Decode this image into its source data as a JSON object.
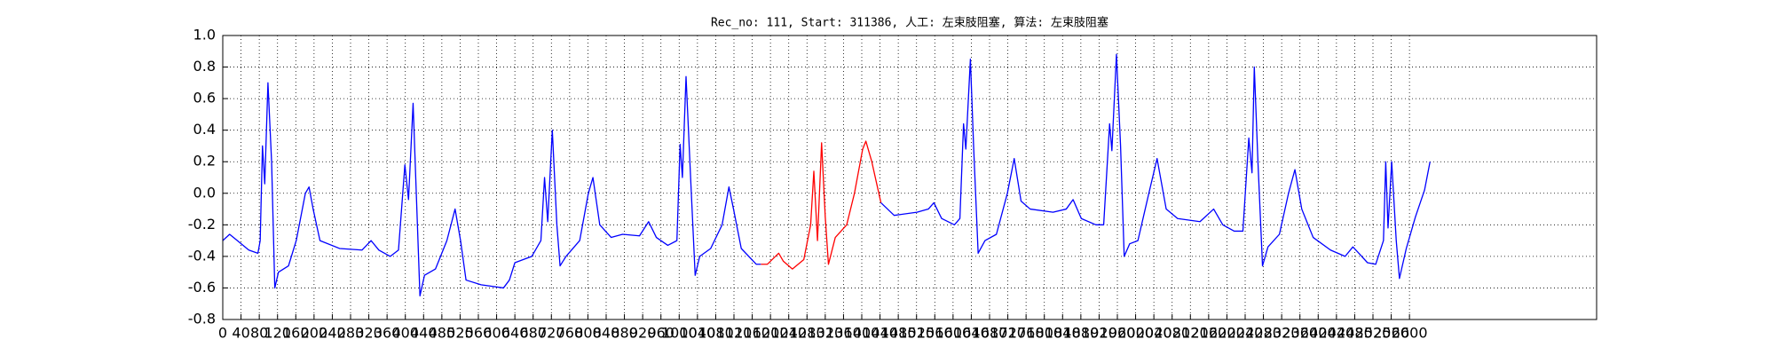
{
  "chart_data": {
    "type": "line",
    "title": "Rec_no: 111, Start: 311386, 人工: 左束肢阻塞, 算法: 左束肢阻塞",
    "xlim": [
      0,
      3010
    ],
    "ylim": [
      -0.8,
      1.0
    ],
    "grid": true,
    "xticks": [
      0,
      40,
      80,
      120,
      160,
      200,
      240,
      280,
      320,
      360,
      400,
      440,
      480,
      520,
      560,
      600,
      640,
      680,
      720,
      760,
      800,
      840,
      880,
      920,
      960,
      1000,
      1040,
      1080,
      1120,
      1160,
      1200,
      1240,
      1280,
      1320,
      1360,
      1400,
      1440,
      1480,
      1520,
      1560,
      1600,
      1640,
      1680,
      1720,
      1760,
      1800,
      1840,
      1880,
      1920,
      1960,
      2000,
      2040,
      2080,
      2120,
      2160,
      2200,
      2240,
      2280,
      2320,
      2360,
      2400,
      2440,
      2480,
      2520,
      2560,
      2600
    ],
    "yticks": [
      -0.8,
      -0.6,
      -0.4,
      -0.2,
      {
        "value": 0.0,
        "label": "0.0"
      },
      0.2,
      0.4,
      0.6,
      0.8,
      {
        "value": 1.0,
        "label": "1.0"
      }
    ],
    "series": [
      {
        "color": "#0000ff",
        "x": [
          0,
          15,
          32,
          57,
          77,
          82,
          87,
          92,
          99,
          107,
          114,
          122,
          144,
          161,
          181,
          189,
          198,
          213,
          256,
          305,
          325,
          342,
          367,
          385,
          399,
          407,
          417,
          424,
          432,
          442,
          466,
          491,
          509,
          521,
          533,
          566,
          615,
          628,
          640,
          677,
          697,
          705,
          712,
          722,
          732,
          739,
          752,
          782,
          801,
          811,
          826,
          851,
          876,
          913,
          933,
          950,
          975,
          995,
          1002,
          1007,
          1015,
          1025,
          1035,
          1045,
          1069,
          1094,
          1109,
          1119,
          1136,
          1169,
          1179
        ],
        "values": [
          -0.3,
          -0.26,
          -0.3,
          -0.36,
          -0.38,
          -0.3,
          0.3,
          0.06,
          0.7,
          0.2,
          -0.6,
          -0.5,
          -0.46,
          -0.3,
          0.0,
          0.04,
          -0.1,
          -0.3,
          -0.35,
          -0.36,
          -0.3,
          -0.36,
          -0.4,
          -0.36,
          0.18,
          -0.04,
          0.57,
          0.0,
          -0.65,
          -0.52,
          -0.48,
          -0.3,
          -0.1,
          -0.3,
          -0.55,
          -0.58,
          -0.6,
          -0.55,
          -0.44,
          -0.4,
          -0.3,
          0.1,
          -0.18,
          0.4,
          -0.2,
          -0.46,
          -0.4,
          -0.3,
          0.0,
          0.1,
          -0.2,
          -0.28,
          -0.26,
          -0.27,
          -0.18,
          -0.28,
          -0.33,
          -0.3,
          0.31,
          0.1,
          0.74,
          0.1,
          -0.52,
          -0.4,
          -0.35,
          -0.2,
          0.04,
          -0.1,
          -0.35,
          -0.45,
          -0.45
        ]
      },
      {
        "color": "#ff0000",
        "x": [
          1179,
          1193,
          1218,
          1228,
          1248,
          1273,
          1288,
          1295,
          1303,
          1312,
          1320,
          1327,
          1342,
          1367,
          1384,
          1402,
          1409,
          1422,
          1442
        ],
        "values": [
          -0.45,
          -0.45,
          -0.38,
          -0.43,
          -0.48,
          -0.42,
          -0.2,
          0.14,
          -0.3,
          0.32,
          -0.15,
          -0.45,
          -0.28,
          -0.2,
          0.0,
          0.28,
          0.33,
          0.2,
          -0.06
        ]
      },
      {
        "color": "#0000ff",
        "x": [
          1442,
          1471,
          1521,
          1546,
          1558,
          1575,
          1603,
          1615,
          1623,
          1628,
          1638,
          1645,
          1655,
          1670,
          1695,
          1719,
          1734,
          1749,
          1769,
          1819,
          1848,
          1863,
          1881,
          1913,
          1930,
          1943,
          1948,
          1958,
          1967,
          1975,
          1987,
          2005,
          2029,
          2047,
          2067,
          2092,
          2141,
          2171,
          2191,
          2216,
          2235,
          2248,
          2255,
          2260,
          2268,
          2278,
          2290,
          2315,
          2335,
          2349,
          2364,
          2389,
          2427,
          2459,
          2476,
          2489,
          2508,
          2526,
          2543,
          2548,
          2553,
          2561,
          2571,
          2578,
          2593,
          2613,
          2633,
          2645
        ],
        "values": [
          -0.06,
          -0.14,
          -0.12,
          -0.1,
          -0.06,
          -0.16,
          -0.2,
          -0.16,
          0.44,
          0.28,
          0.85,
          0.3,
          -0.38,
          -0.3,
          -0.26,
          0.0,
          0.22,
          -0.05,
          -0.1,
          -0.12,
          -0.1,
          -0.04,
          -0.16,
          -0.2,
          -0.2,
          0.44,
          0.27,
          0.88,
          0.3,
          -0.4,
          -0.32,
          -0.3,
          0.0,
          0.22,
          -0.1,
          -0.16,
          -0.18,
          -0.1,
          -0.2,
          -0.24,
          -0.24,
          0.35,
          0.13,
          0.8,
          0.2,
          -0.46,
          -0.34,
          -0.26,
          0.0,
          0.15,
          -0.1,
          -0.28,
          -0.36,
          -0.4,
          -0.34,
          -0.38,
          -0.44,
          -0.45,
          -0.3,
          0.2,
          -0.22,
          0.2,
          -0.3,
          -0.54,
          -0.35,
          -0.15,
          0.02,
          0.2
        ]
      }
    ]
  }
}
